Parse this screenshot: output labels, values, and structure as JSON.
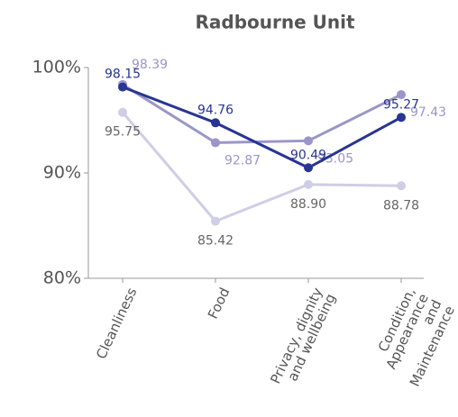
{
  "chart_data": {
    "type": "line",
    "title": "Radbourne Unit",
    "categories": [
      "Cleanliness",
      "Food",
      "Privacy, dignity\nand wellbeing",
      "Condition,\nAppearance and\nMaintenance"
    ],
    "series": [
      {
        "color": "#283593",
        "values": [
          98.15,
          94.76,
          90.49,
          95.27
        ],
        "value_labels": [
          "98.15",
          "94.76",
          "90.49",
          "95.27"
        ]
      },
      {
        "color": "#9b95c9",
        "values": [
          98.39,
          92.87,
          93.05,
          97.43
        ],
        "value_labels": [
          "98.39",
          "92.87",
          "93.05",
          "97.43"
        ]
      },
      {
        "color": "#d0cde6",
        "values": [
          95.75,
          85.42,
          88.9,
          88.78
        ],
        "value_labels": [
          "95.75",
          "85.42",
          "88.90",
          "88.78"
        ]
      }
    ],
    "ylim": [
      80,
      100
    ],
    "yticks": [
      {
        "value": 80,
        "label": "80%"
      },
      {
        "value": 90,
        "label": "90%"
      },
      {
        "value": 100,
        "label": "100%"
      }
    ]
  }
}
